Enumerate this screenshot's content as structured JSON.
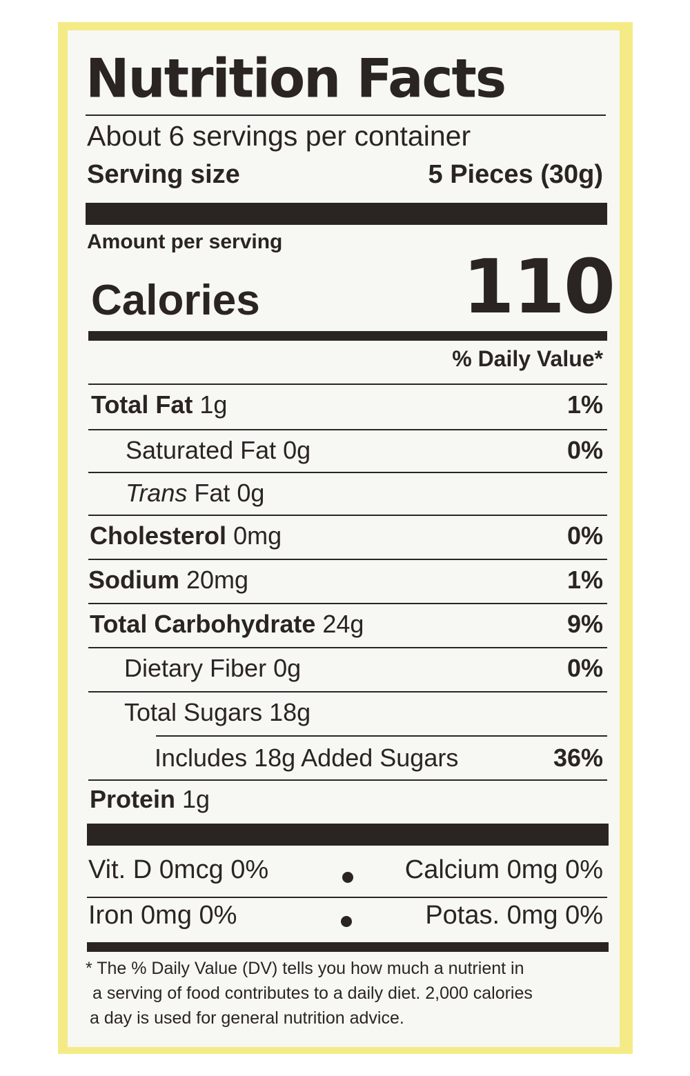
{
  "label": {
    "title": "Nutrition Facts",
    "servings_per_container": "About 6 servings per container",
    "serving_size_label": "Serving size",
    "serving_size_value": "5 Pieces (30g)",
    "amount_per_serving": "Amount per serving",
    "calories_label": "Calories",
    "calories_value": "110",
    "daily_value_header": "% Daily Value*",
    "nutrients": [
      {
        "name": "Total Fat",
        "amount": "1g",
        "dv": "1%"
      },
      {
        "name": "Saturated Fat",
        "amount": "0g",
        "dv": "0%"
      },
      {
        "name_italic": "Trans",
        "name_rest": "Fat",
        "amount": "0g",
        "dv": ""
      },
      {
        "name": "Cholesterol",
        "amount": "0mg",
        "dv": "0%"
      },
      {
        "name": "Sodium",
        "amount": "20mg",
        "dv": "1%"
      },
      {
        "name": "Total Carbohydrate",
        "amount": "24g",
        "dv": "9%"
      },
      {
        "name": "Dietary Fiber",
        "amount": "0g",
        "dv": "0%"
      },
      {
        "name": "Total Sugars",
        "amount": "18g",
        "dv": ""
      },
      {
        "name": "Includes 18g Added Sugars",
        "amount": "",
        "dv": "36%"
      },
      {
        "name": "Protein",
        "amount": "1g",
        "dv": ""
      }
    ],
    "vitamins": {
      "row1_left": "Vit. D 0mcg 0%",
      "row1_right": "Calcium 0mg 0%",
      "row2_left": "Iron 0mg 0%",
      "row2_right": "Potas. 0mg 0%"
    },
    "footnote": [
      "* The % Daily Value (DV) tells you how much a nutrient in",
      "a serving of food contributes to a daily diet. 2,000 calories",
      "a day is used for general nutrition advice."
    ]
  },
  "colors": {
    "border": "#f4eb86",
    "ink": "#2a2522",
    "paper": "#f7f7f4"
  }
}
